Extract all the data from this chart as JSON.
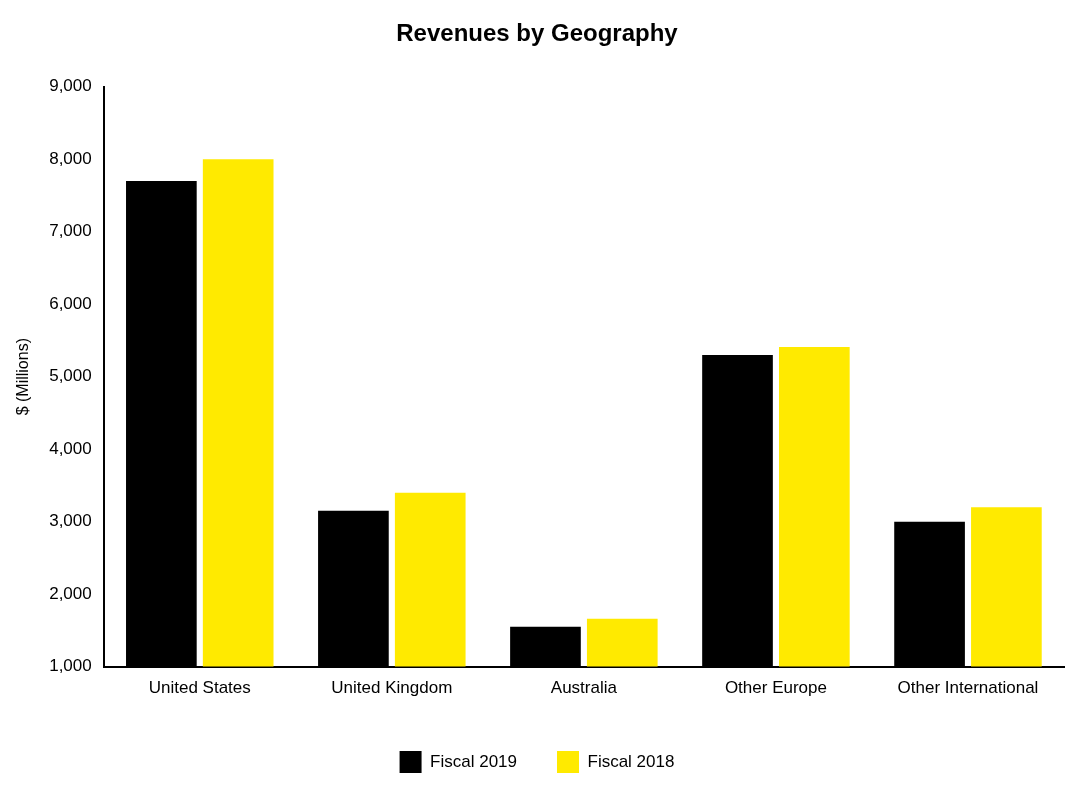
{
  "chart_data": {
    "type": "bar",
    "title": "Revenues by Geography",
    "ylabel": "$ (Millions)",
    "categories": [
      "United States",
      "United Kingdom",
      "Australia",
      "Other Europe",
      "Other International"
    ],
    "series": [
      {
        "name": "Fiscal 2019",
        "color": "#000000",
        "values": [
          7700,
          3150,
          1550,
          5300,
          3000
        ]
      },
      {
        "name": "Fiscal 2018",
        "color": "#ffea00",
        "values": [
          8000,
          3400,
          1660,
          5410,
          3200
        ]
      }
    ],
    "ylim": [
      1000,
      9000
    ],
    "yticks": [
      {
        "value": 1000,
        "label": "1,000"
      },
      {
        "value": 2000,
        "label": "2,000"
      },
      {
        "value": 3000,
        "label": "3,000"
      },
      {
        "value": 4000,
        "label": "4,000"
      },
      {
        "value": 5000,
        "label": "5,000"
      },
      {
        "value": 6000,
        "label": "6,000"
      },
      {
        "value": 7000,
        "label": "7,000"
      },
      {
        "value": 8000,
        "label": "8,000"
      },
      {
        "value": 9000,
        "label": "9,000"
      }
    ],
    "grid": false,
    "legend": "bottom"
  }
}
